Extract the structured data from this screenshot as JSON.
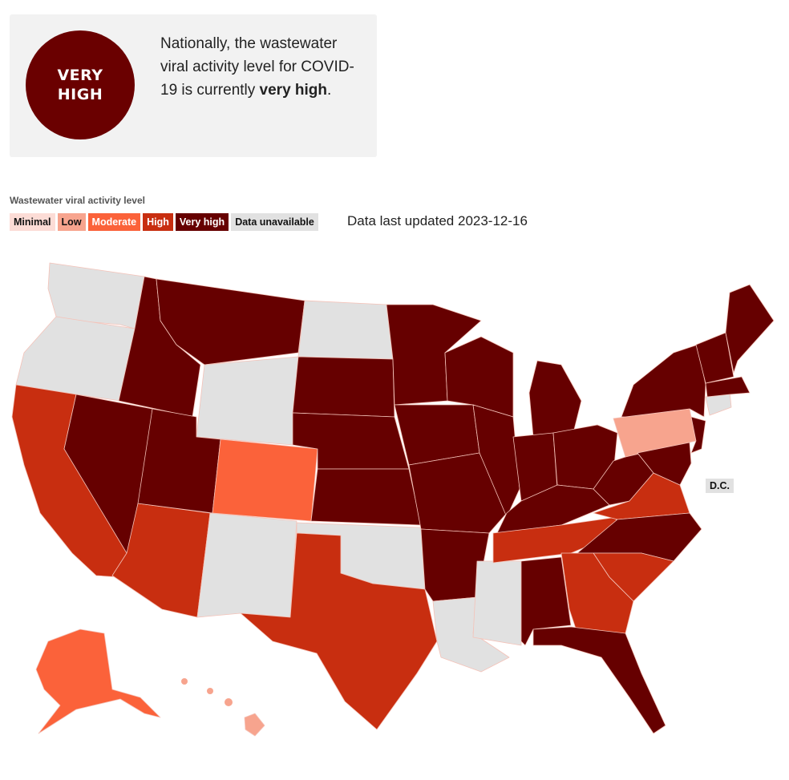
{
  "summary": {
    "badge_line1": "VERY",
    "badge_line2": "HIGH",
    "text_part1": "Nationally, the wastewater viral activity level for COVID-19 is currently ",
    "text_bold": "very high",
    "text_part2": "."
  },
  "legend": {
    "title": "Wastewater viral activity level",
    "items": [
      {
        "label": "Minimal",
        "bg": "#fcdcd6",
        "fg": "#111111"
      },
      {
        "label": "Low",
        "bg": "#f7a48e",
        "fg": "#111111"
      },
      {
        "label": "Moderate",
        "bg": "#fb623a",
        "fg": "#ffffff"
      },
      {
        "label": "High",
        "bg": "#c82e10",
        "fg": "#ffffff"
      },
      {
        "label": "Very high",
        "bg": "#660000",
        "fg": "#ffffff"
      },
      {
        "label": "Data unavailable",
        "bg": "#e1e1e1",
        "fg": "#111111"
      }
    ],
    "updated": "Data last updated 2023-12-16"
  },
  "colors": {
    "very_high": "#660000",
    "high": "#c82e10",
    "moderate": "#fb623a",
    "low": "#f7a48e",
    "minimal": "#fcdcd6",
    "unavailable": "#e1e1e1"
  },
  "map": {
    "dc_label": "D.C."
  }
}
